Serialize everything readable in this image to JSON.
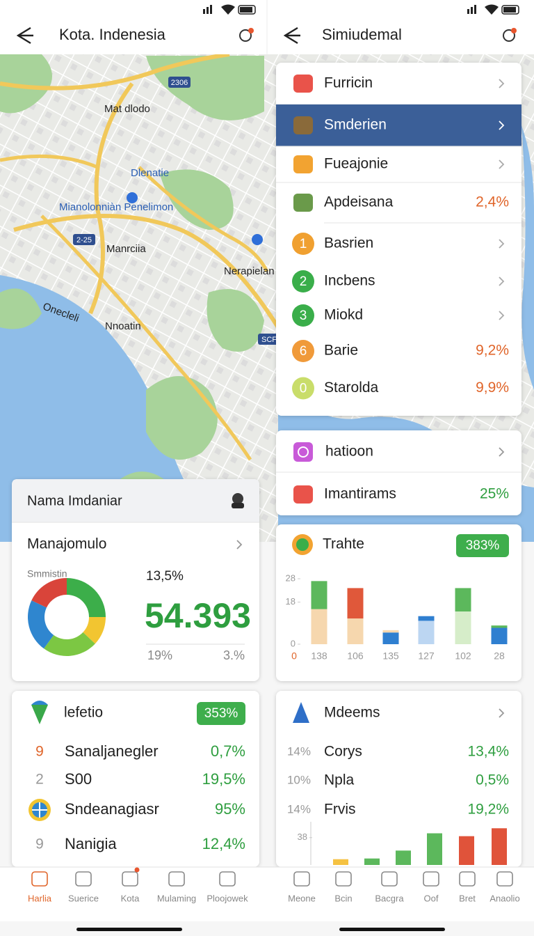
{
  "left_screen": {
    "header": {
      "title": "Kota. Indenesia"
    },
    "map": {
      "labels": [
        "Mat dlodo",
        "Dlenatie",
        "Mianolonniàn Penelimon",
        "Manrciia",
        "Nerapielan",
        "Onecleli",
        "Nnoatin"
      ],
      "road_shields": [
        "2306",
        "2-25",
        "SCF"
      ]
    },
    "profile_card": {
      "title": "Nama Imdaniar"
    },
    "summary_card": {
      "title": "Manajomulo",
      "subtitle": "Smmistin",
      "rate": "13,5%",
      "total": "54.393",
      "left_note": "19%",
      "right_note": "3.%",
      "chart": {
        "type": "donut",
        "values": [
          25,
          12,
          23,
          22,
          18
        ],
        "colors": [
          "#3cae4a",
          "#f2c531",
          "#7cc743",
          "#2f86cf",
          "#d9443a"
        ]
      }
    },
    "list_card": {
      "title": "lefetio",
      "badge": "353%",
      "rows": [
        {
          "index": "9",
          "label": "Sanaljanegler",
          "value": "0,7%"
        },
        {
          "index": "2",
          "label": "S00",
          "value": "19,5%"
        },
        {
          "label": "Sndeanagiasr",
          "value": "95%"
        },
        {
          "index": "9",
          "label": "Nanigia",
          "value": "12,4%"
        }
      ]
    },
    "nav": [
      "Harlia",
      "Suerice",
      "Kota",
      "Mulaming",
      "Ploojowek"
    ]
  },
  "right_screen": {
    "header": {
      "title": "Simiudemal"
    },
    "menu": [
      {
        "label": "Furricin"
      },
      {
        "label": "Smderien",
        "selected": true
      },
      {
        "label": "Fueajonie"
      },
      {
        "label": "Apdeisana",
        "value": "2,4%"
      },
      {
        "index": "1",
        "label": "Basrien"
      },
      {
        "index": "2",
        "label": "Incbens"
      },
      {
        "index": "3",
        "label": "Miokd"
      },
      {
        "index": "6",
        "label": "Barie",
        "value": "9,2%"
      },
      {
        "index": "0",
        "label": "Starolda",
        "value": "9,9%"
      }
    ],
    "link_card": {
      "title": "hatioon",
      "label": "Imantirams",
      "value": "25%"
    },
    "trend_card": {
      "title": "Trahte",
      "badge": "383%",
      "chart": {
        "type": "bar",
        "stacked": true,
        "origin_label": "0",
        "categories": [
          "138",
          "106",
          "135",
          "127",
          "102",
          "28"
        ],
        "series": [
          {
            "values": [
              15,
              11,
              5,
              10,
              14,
              7
            ],
            "colors": [
              "#f6d7ae",
              "#f6d7ae",
              "#2f7fd0",
              "#bcd6f2",
              "#d6edc9",
              "#2f7fd0"
            ]
          },
          {
            "values": [
              12,
              13,
              1,
              2,
              10,
              1
            ],
            "colors": [
              "#5cb85c",
              "#e0583a",
              "#f6d7ae",
              "#2f7fd0",
              "#5cb85c",
              "#5cb85c"
            ]
          }
        ],
        "ylim": [
          0,
          28
        ],
        "yticks": [
          0,
          18,
          28
        ]
      }
    },
    "stats_card": {
      "title": "Mdeems",
      "rows": [
        {
          "share": "14%",
          "label": "Corys",
          "value": "13,4%"
        },
        {
          "share": "10%",
          "label": "Npla",
          "value": "0,5%"
        },
        {
          "share": "14%",
          "label": "Frvis",
          "value": "19,2%"
        }
      ],
      "chart": {
        "type": "bar",
        "values": [
          8,
          9,
          20,
          44,
          40,
          51
        ],
        "colors": [
          "#f5c242",
          "#5cb85c",
          "#5cb85c",
          "#5cb85c",
          "#e0533a",
          "#e0533a"
        ],
        "ylim": [
          0,
          60
        ],
        "yticks": [
          38
        ]
      }
    },
    "nav": [
      "Meone",
      "Bcin",
      "Bacgra",
      "Oof",
      "Bret",
      "Anaolio"
    ]
  }
}
